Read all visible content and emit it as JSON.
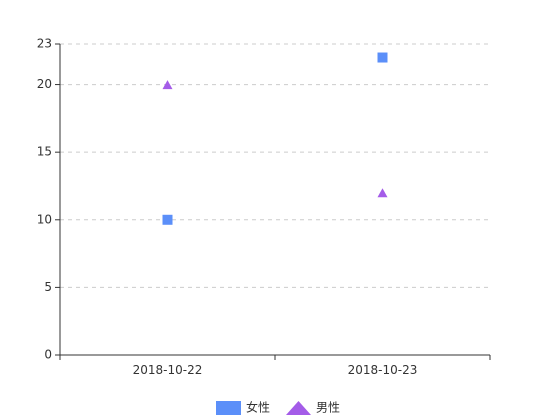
{
  "chart_data": {
    "type": "scatter",
    "x_type": "category",
    "categories": [
      "2018-10-22",
      "2018-10-23"
    ],
    "yticks": [
      0,
      5,
      10,
      15,
      20,
      23
    ],
    "ylim": [
      0,
      23
    ],
    "grid": true,
    "legend_position": "bottom-center",
    "series": [
      {
        "name": "女性",
        "shape": "square",
        "color": "#5B8FF9",
        "values": [
          10,
          22
        ]
      },
      {
        "name": "男性",
        "shape": "triangle",
        "color": "#A45CE8",
        "values": [
          20,
          12
        ]
      }
    ]
  }
}
